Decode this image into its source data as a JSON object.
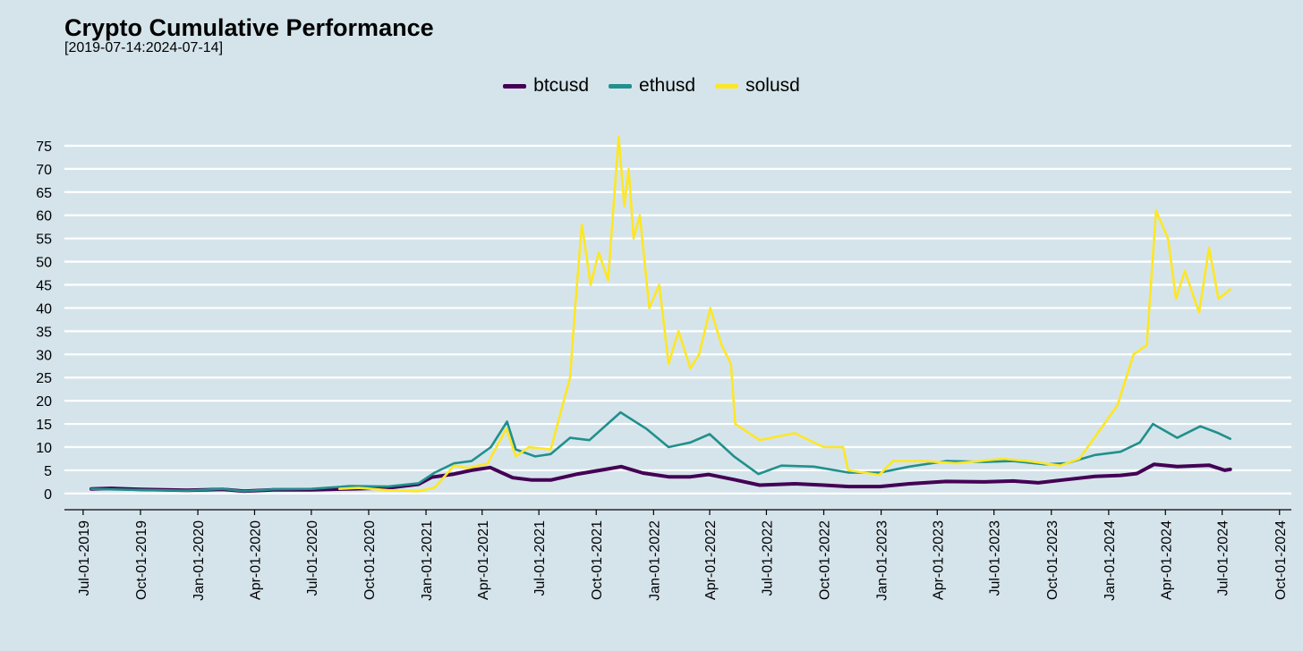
{
  "title": "Crypto Cumulative Performance",
  "subtitle": "[2019-07-14:2024-07-14]",
  "colors": {
    "background": "#d5e4eb",
    "grid": "#ffffff",
    "btcusd": "#440154",
    "ethusd": "#21908c",
    "solusd": "#fde725"
  },
  "chart_data": {
    "type": "line",
    "title": "Crypto Cumulative Performance",
    "subtitle": "[2019-07-14:2024-07-14]",
    "xlabel": "",
    "ylabel": "",
    "legend_position": "top-center",
    "grid": "horizontal",
    "ylim": [
      -3.5,
      77.5
    ],
    "xlim": [
      "2019-06-01",
      "2024-10-20"
    ],
    "y_ticks": [
      0,
      5,
      10,
      15,
      20,
      25,
      30,
      35,
      40,
      45,
      50,
      55,
      60,
      65,
      70,
      75
    ],
    "x_ticks": [
      "Jul-01-2019",
      "Oct-01-2019",
      "Jan-01-2020",
      "Apr-01-2020",
      "Jul-01-2020",
      "Oct-01-2020",
      "Jan-01-2021",
      "Apr-01-2021",
      "Jul-01-2021",
      "Oct-01-2021",
      "Jan-01-2022",
      "Apr-01-2022",
      "Jul-01-2022",
      "Oct-01-2022",
      "Jan-01-2023",
      "Apr-01-2023",
      "Jul-01-2023",
      "Oct-01-2023",
      "Jan-01-2024",
      "Apr-01-2024",
      "Jul-01-2024",
      "Oct-01-2024"
    ],
    "series": [
      {
        "name": "btcusd",
        "color": "#440154",
        "x": [
          "2019-07-14",
          "2019-08-15",
          "2019-10-01",
          "2019-12-15",
          "2020-02-10",
          "2020-03-15",
          "2020-05-01",
          "2020-07-01",
          "2020-09-01",
          "2020-11-01",
          "2020-12-20",
          "2021-01-10",
          "2021-02-15",
          "2021-03-15",
          "2021-04-14",
          "2021-05-20",
          "2021-06-20",
          "2021-07-20",
          "2021-09-01",
          "2021-10-20",
          "2021-11-10",
          "2021-12-15",
          "2022-01-25",
          "2022-03-01",
          "2022-03-30",
          "2022-05-10",
          "2022-06-20",
          "2022-08-15",
          "2022-10-01",
          "2022-11-10",
          "2022-12-30",
          "2023-02-15",
          "2023-04-15",
          "2023-06-15",
          "2023-08-01",
          "2023-09-10",
          "2023-10-25",
          "2023-12-10",
          "2024-01-20",
          "2024-02-15",
          "2024-03-14",
          "2024-04-20",
          "2024-06-10",
          "2024-07-05",
          "2024-07-14"
        ],
        "y": [
          1.0,
          1.1,
          0.9,
          0.7,
          0.9,
          0.5,
          0.8,
          0.8,
          1.0,
          1.2,
          2.0,
          3.5,
          4.2,
          5.0,
          5.6,
          3.4,
          2.9,
          2.9,
          4.2,
          5.3,
          5.8,
          4.4,
          3.6,
          3.6,
          4.1,
          3.0,
          1.8,
          2.1,
          1.8,
          1.5,
          1.5,
          2.1,
          2.6,
          2.5,
          2.7,
          2.3,
          3.0,
          3.7,
          3.9,
          4.3,
          6.3,
          5.8,
          6.1,
          5.0,
          5.2
        ]
      },
      {
        "name": "ethusd",
        "color": "#21908c",
        "x": [
          "2019-07-14",
          "2019-09-15",
          "2019-12-15",
          "2020-02-10",
          "2020-03-15",
          "2020-05-01",
          "2020-07-01",
          "2020-09-01",
          "2020-11-01",
          "2020-12-20",
          "2021-01-15",
          "2021-02-15",
          "2021-03-15",
          "2021-04-15",
          "2021-05-11",
          "2021-05-25",
          "2021-06-25",
          "2021-07-20",
          "2021-08-20",
          "2021-09-20",
          "2021-11-09",
          "2021-12-20",
          "2022-01-25",
          "2022-03-01",
          "2022-04-01",
          "2022-05-10",
          "2022-06-18",
          "2022-07-25",
          "2022-09-15",
          "2022-11-10",
          "2022-12-30",
          "2023-02-15",
          "2023-04-15",
          "2023-06-15",
          "2023-08-01",
          "2023-09-20",
          "2023-10-25",
          "2023-12-10",
          "2024-01-20",
          "2024-02-20",
          "2024-03-12",
          "2024-04-20",
          "2024-05-27",
          "2024-06-25",
          "2024-07-14"
        ],
        "y": [
          1.0,
          0.8,
          0.6,
          1.0,
          0.5,
          0.9,
          1.0,
          1.6,
          1.5,
          2.2,
          4.5,
          6.5,
          7.0,
          10.0,
          15.5,
          9.5,
          8.0,
          8.5,
          12.0,
          11.5,
          17.5,
          14.0,
          10.0,
          11.0,
          12.8,
          8.0,
          4.2,
          6.0,
          5.8,
          4.5,
          4.5,
          5.8,
          7.0,
          6.8,
          7.0,
          6.3,
          6.5,
          8.3,
          9.0,
          11.0,
          15.0,
          12.0,
          14.5,
          13.0,
          11.8
        ]
      },
      {
        "name": "solusd",
        "color": "#fde725",
        "x": [
          "2020-08-15",
          "2020-09-15",
          "2020-11-01",
          "2020-12-20",
          "2021-01-15",
          "2021-02-15",
          "2021-03-10",
          "2021-04-10",
          "2021-05-10",
          "2021-05-25",
          "2021-06-15",
          "2021-07-20",
          "2021-08-10",
          "2021-08-20",
          "2021-08-28",
          "2021-09-08",
          "2021-09-22",
          "2021-10-05",
          "2021-10-20",
          "2021-11-06",
          "2021-11-15",
          "2021-11-22",
          "2021-11-30",
          "2021-12-10",
          "2021-12-25",
          "2022-01-10",
          "2022-01-25",
          "2022-02-10",
          "2022-03-01",
          "2022-03-15",
          "2022-04-02",
          "2022-04-20",
          "2022-05-05",
          "2022-05-12",
          "2022-06-20",
          "2022-08-15",
          "2022-10-01",
          "2022-11-01",
          "2022-11-09",
          "2022-12-29",
          "2023-01-20",
          "2023-03-10",
          "2023-05-01",
          "2023-07-15",
          "2023-08-25",
          "2023-10-15",
          "2023-11-15",
          "2024-01-15",
          "2024-02-10",
          "2024-03-02",
          "2024-03-17",
          "2024-04-05",
          "2024-04-18",
          "2024-05-02",
          "2024-05-25",
          "2024-06-10",
          "2024-06-25",
          "2024-07-14"
        ],
        "y": [
          1.0,
          1.2,
          0.7,
          0.5,
          1.3,
          6.0,
          5.5,
          6.5,
          14.0,
          8.0,
          10.0,
          9.5,
          20.0,
          25.0,
          40.0,
          58.0,
          45.0,
          52.0,
          46.0,
          77.0,
          62.0,
          70.0,
          55.0,
          60.0,
          40.0,
          45.0,
          28.0,
          35.0,
          27.0,
          30.0,
          40.0,
          32.0,
          28.0,
          15.0,
          11.5,
          13.0,
          10.0,
          10.0,
          5.0,
          4.0,
          7.0,
          7.0,
          6.5,
          7.5,
          7.0,
          6.0,
          7.5,
          19.0,
          30.0,
          32.0,
          61.0,
          55.0,
          42.0,
          48.0,
          39.0,
          53.0,
          42.0,
          44.0
        ]
      }
    ]
  }
}
